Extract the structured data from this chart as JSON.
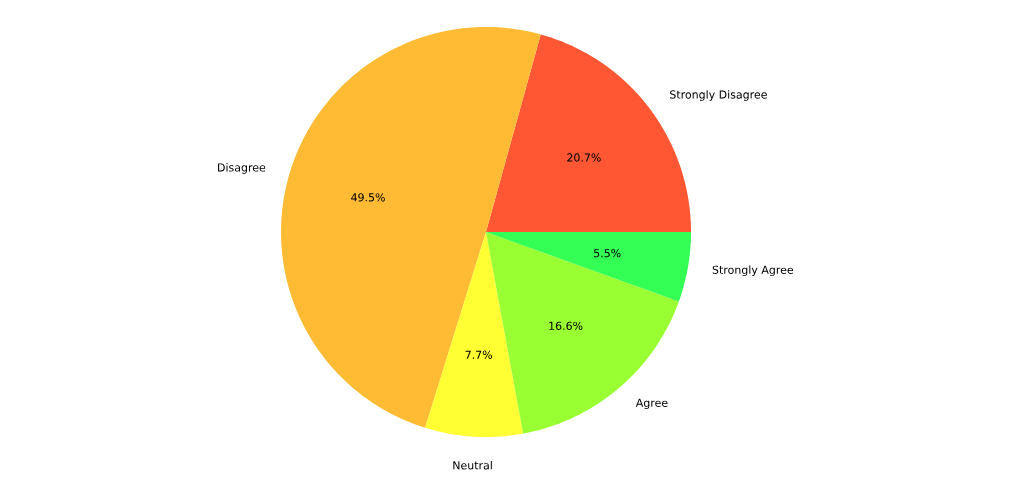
{
  "chart_data": {
    "type": "pie",
    "categories": [
      "Strongly Disagree",
      "Disagree",
      "Neutral",
      "Agree",
      "Strongly Agree"
    ],
    "values": [
      20.7,
      49.5,
      7.7,
      16.6,
      5.5
    ],
    "colors": [
      "#ff5733",
      "#ffbb33",
      "#ffff33",
      "#99ff33",
      "#33ff55"
    ],
    "value_labels": [
      "20.7%",
      "49.5%",
      "7.7%",
      "16.6%",
      "5.5%"
    ]
  }
}
